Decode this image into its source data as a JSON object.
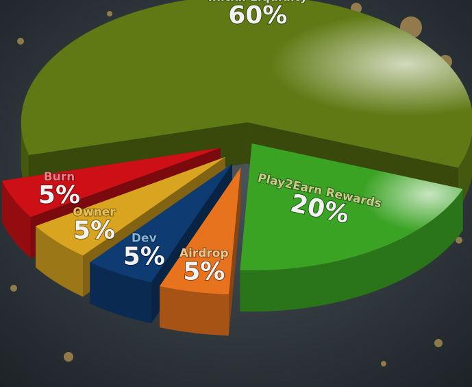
{
  "chart_data": {
    "type": "pie",
    "categories": [
      "Initial Liquidity",
      "Play2Earn Rewards",
      "Airdrop",
      "Dev",
      "Owner",
      "Burn"
    ],
    "values": [
      60,
      20,
      5,
      5,
      5,
      5
    ],
    "value_labels": [
      "60%",
      "20%",
      "5%",
      "5%",
      "5%",
      "5%"
    ],
    "colors": [
      "#5f7a14",
      "#3ba324",
      "#e8731e",
      "#0e3b72",
      "#d9a520",
      "#cc1016"
    ],
    "label_colors": [
      "#d8dcc8",
      "#c9c98a",
      "#e9c98f",
      "#7fb6d6",
      "#e9c25a",
      "#f08088"
    ]
  }
}
